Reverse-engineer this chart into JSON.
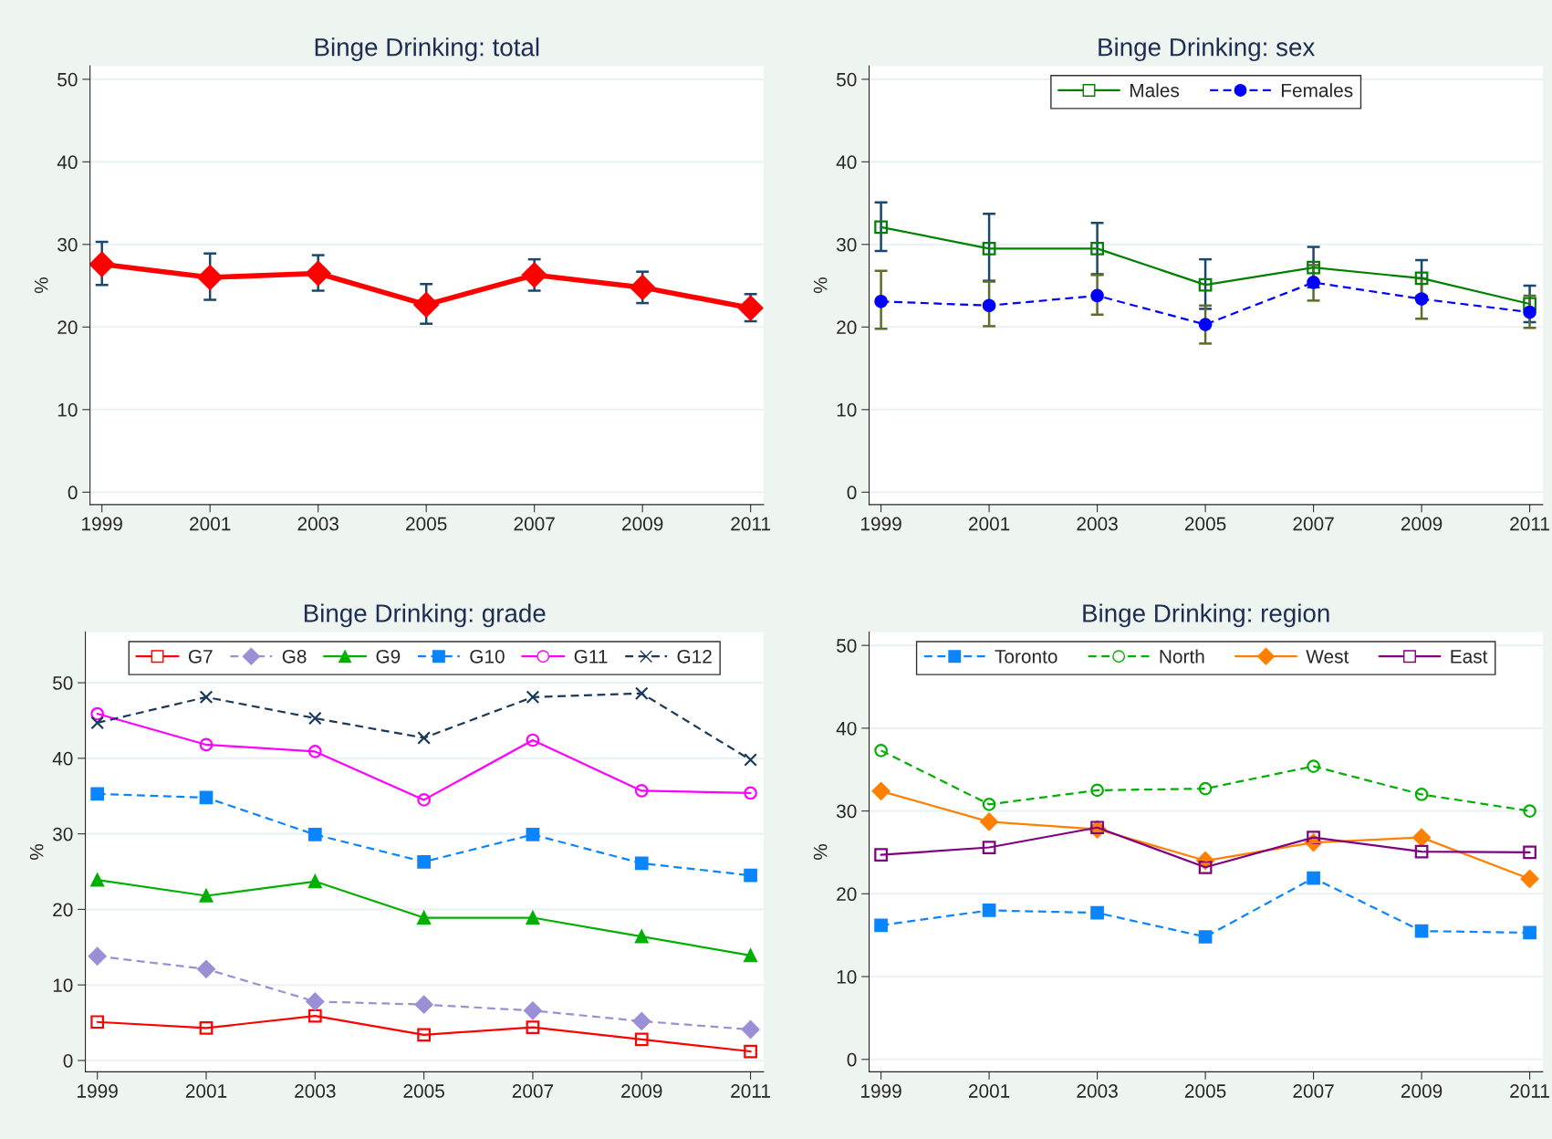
{
  "chart_data": [
    {
      "type": "line",
      "title": "Binge Drinking: total",
      "ylabel": "%",
      "x": [
        1999,
        2001,
        2003,
        2005,
        2007,
        2009,
        2011
      ],
      "xlim": [
        1998.78,
        2011.24
      ],
      "xticks": [
        1999,
        2001,
        2003,
        2005,
        2007,
        2009,
        2011
      ],
      "ylim": [
        -1.5,
        51.6
      ],
      "yticks": [
        0,
        10,
        20,
        30,
        40,
        50
      ],
      "grid": "y",
      "legend": false,
      "series": [
        {
          "color": "#ff0000",
          "marker": "diamond",
          "line_style": "solid",
          "values": [
            27.6,
            26.0,
            26.5,
            22.7,
            26.3,
            24.8,
            22.3
          ],
          "errors": [
            [
              25.1,
              30.3
            ],
            [
              23.3,
              28.9
            ],
            [
              24.4,
              28.7
            ],
            [
              20.4,
              25.2
            ],
            [
              24.4,
              28.2
            ],
            [
              22.9,
              26.7
            ],
            [
              20.7,
              24.0
            ]
          ]
        }
      ]
    },
    {
      "type": "line",
      "title": "Binge Drinking: sex",
      "ylabel": "%",
      "x": [
        1999,
        2001,
        2003,
        2005,
        2007,
        2009,
        2011
      ],
      "xlim": [
        1998.78,
        2011.24
      ],
      "xticks": [
        1999,
        2001,
        2003,
        2005,
        2007,
        2009,
        2011
      ],
      "ylim": [
        -1.5,
        51.6
      ],
      "yticks": [
        0,
        10,
        20,
        30,
        40,
        50
      ],
      "grid": "y",
      "legend": "top",
      "series": [
        {
          "name": "Males",
          "color": "#008000",
          "marker": "square",
          "line_style": "solid",
          "values": [
            32.1,
            29.5,
            29.5,
            25.1,
            27.2,
            25.9,
            22.8
          ],
          "errors": [
            [
              29.2,
              35.1
            ],
            [
              25.6,
              33.7
            ],
            [
              26.4,
              32.6
            ],
            [
              22.2,
              28.2
            ],
            [
              24.8,
              29.7
            ],
            [
              23.7,
              28.1
            ],
            [
              20.6,
              25.0
            ]
          ]
        },
        {
          "name": "Females",
          "color": "#0000ff",
          "marker": "circle",
          "line_style": "dashed",
          "values": [
            23.1,
            22.6,
            23.8,
            20.3,
            25.4,
            23.4,
            21.8
          ],
          "errors": [
            [
              19.8,
              26.8
            ],
            [
              20.1,
              25.5
            ],
            [
              21.5,
              26.3
            ],
            [
              18.0,
              22.6
            ],
            [
              23.2,
              27.5
            ],
            [
              21.0,
              25.9
            ],
            [
              19.9,
              23.8
            ]
          ]
        }
      ]
    },
    {
      "type": "line",
      "title": "Binge Drinking: grade",
      "ylabel": "%",
      "x": [
        1999,
        2001,
        2003,
        2005,
        2007,
        2009,
        2011
      ],
      "xlim": [
        1998.78,
        2011.24
      ],
      "xticks": [
        1999,
        2001,
        2003,
        2005,
        2007,
        2009,
        2011
      ],
      "ylim": [
        -1.5,
        56.7
      ],
      "yticks": [
        0,
        10,
        20,
        30,
        40,
        50
      ],
      "grid": "y",
      "legend": "top",
      "series": [
        {
          "name": "G7",
          "color": "#ff0000",
          "marker": "square",
          "line_style": "solid",
          "values": [
            5.1,
            4.3,
            5.9,
            3.4,
            4.4,
            2.8,
            1.2
          ]
        },
        {
          "name": "G8",
          "color": "#9b8fd6",
          "marker": "diamond",
          "line_style": "dashed",
          "values": [
            13.8,
            12.1,
            7.8,
            7.4,
            6.6,
            5.2,
            4.1
          ]
        },
        {
          "name": "G9",
          "color": "#00b000",
          "marker": "triangle",
          "line_style": "solid",
          "values": [
            23.9,
            21.8,
            23.7,
            18.9,
            18.9,
            16.4,
            13.9
          ]
        },
        {
          "name": "G10",
          "color": "#0a84ff",
          "marker": "square",
          "line_style": "dashed",
          "values": [
            35.3,
            34.8,
            29.9,
            26.3,
            29.9,
            26.1,
            24.5
          ]
        },
        {
          "name": "G11",
          "color": "#ff00ff",
          "marker": "circle",
          "line_style": "solid",
          "values": [
            45.9,
            41.8,
            40.9,
            34.5,
            42.4,
            35.7,
            35.4
          ]
        },
        {
          "name": "G12",
          "color": "#1a3a5c",
          "marker": "cross",
          "line_style": "dashed",
          "values": [
            44.7,
            48.1,
            45.3,
            42.7,
            48.1,
            48.6,
            39.8
          ]
        }
      ]
    },
    {
      "type": "line",
      "title": "Binge Drinking: region",
      "ylabel": "%",
      "x": [
        1999,
        2001,
        2003,
        2005,
        2007,
        2009,
        2011
      ],
      "xlim": [
        1998.78,
        2011.24
      ],
      "xticks": [
        1999,
        2001,
        2003,
        2005,
        2007,
        2009,
        2011
      ],
      "ylim": [
        -1.5,
        51.6
      ],
      "yticks": [
        0,
        10,
        20,
        30,
        40,
        50
      ],
      "grid": "y",
      "legend": "top",
      "series": [
        {
          "name": "Toronto",
          "color": "#0a84ff",
          "marker": "square",
          "line_style": "dashed",
          "values": [
            16.2,
            18.0,
            17.7,
            14.8,
            21.9,
            15.5,
            15.3
          ]
        },
        {
          "name": "North",
          "color": "#00b000",
          "marker": "circle",
          "line_style": "dashed",
          "values": [
            37.3,
            30.8,
            32.5,
            32.7,
            35.4,
            32.0,
            30.0
          ]
        },
        {
          "name": "West",
          "color": "#ff8000",
          "marker": "diamond",
          "line_style": "solid",
          "values": [
            32.4,
            28.7,
            27.8,
            24.0,
            26.2,
            26.8,
            21.8
          ]
        },
        {
          "name": "East",
          "color": "#800080",
          "marker": "square",
          "line_style": "solid",
          "values": [
            24.7,
            25.6,
            28.0,
            23.2,
            26.8,
            25.1,
            25.0
          ]
        }
      ]
    }
  ]
}
